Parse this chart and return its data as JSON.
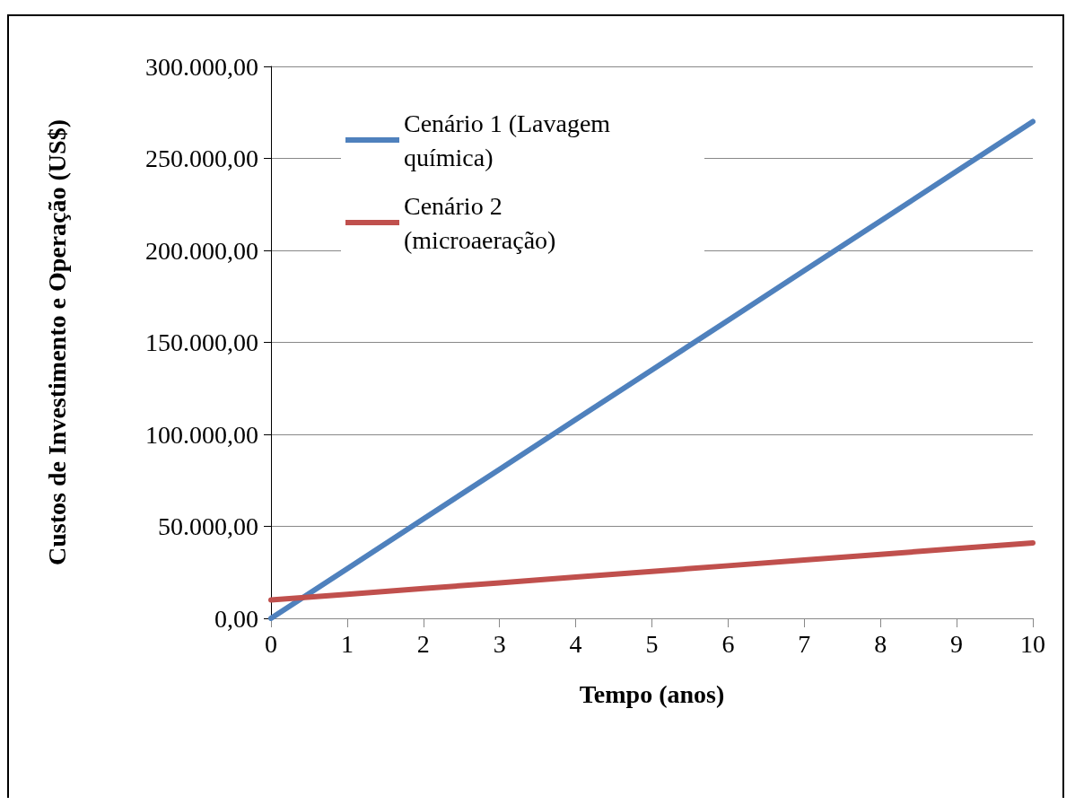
{
  "chart_data": {
    "type": "line",
    "xlabel": "Tempo (anos)",
    "ylabel": "Custos de Investimento e Operação (US$)",
    "x": [
      0,
      1,
      2,
      3,
      4,
      5,
      6,
      7,
      8,
      9,
      10
    ],
    "series": [
      {
        "name": "Cenário 1 (Lavagem química)",
        "color": "#4f81bd",
        "values": [
          0,
          27000,
          54000,
          81000,
          108000,
          135000,
          162000,
          189000,
          216000,
          243000,
          270000
        ]
      },
      {
        "name": "Cenário 2 (microaeração)",
        "color": "#c0504d",
        "values": [
          10000,
          13100,
          16200,
          19300,
          22400,
          25500,
          28600,
          31700,
          34800,
          37900,
          41000
        ]
      }
    ],
    "xlim": [
      0,
      10
    ],
    "xticks": [
      0,
      1,
      2,
      3,
      4,
      5,
      6,
      7,
      8,
      9,
      10
    ],
    "ylim": [
      0,
      300000
    ],
    "yticks": [
      {
        "value": 0,
        "label": "0,00"
      },
      {
        "value": 50000,
        "label": "50.000,00"
      },
      {
        "value": 100000,
        "label": "100.000,00"
      },
      {
        "value": 150000,
        "label": "150.000,00"
      },
      {
        "value": 200000,
        "label": "200.000,00"
      },
      {
        "value": 250000,
        "label": "250.000,00"
      },
      {
        "value": 300000,
        "label": "300.000,00"
      }
    ],
    "grid": "y",
    "legend": "top left",
    "marker": "none",
    "line_style": "solid"
  }
}
